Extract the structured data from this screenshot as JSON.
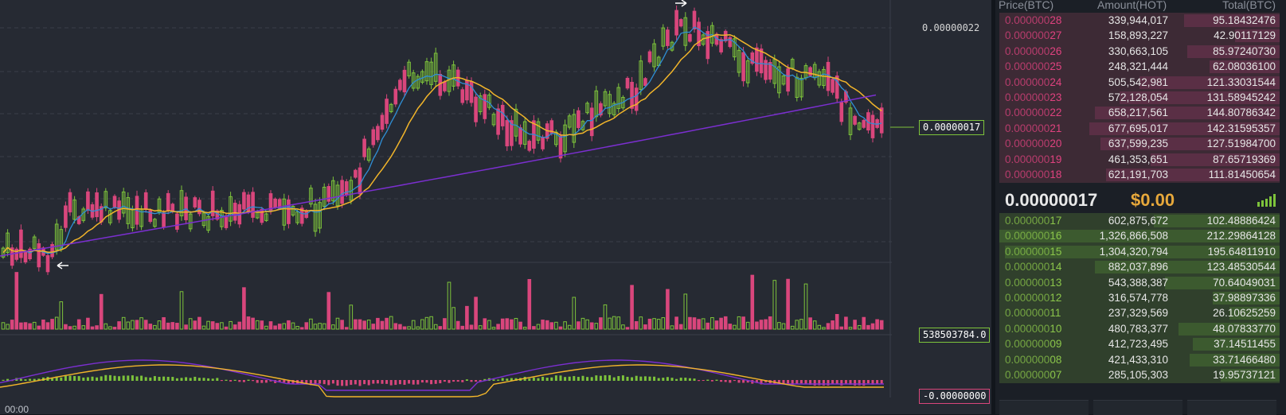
{
  "chart": {
    "high_price_label": "0.00000022",
    "last_price_label": "0.00000017",
    "volume_label": "538503784.0",
    "macd_label": "-0.00000000",
    "time_label": "00:00",
    "colors": {
      "up": "#7dc33b",
      "down": "#d9467c",
      "ma_fast": "#2f8fd6",
      "ma_mid": "#f2b52a",
      "ma_slow": "#7b2fd0",
      "background": "#262a33"
    }
  },
  "orderbook": {
    "headers": {
      "price": "Price(BTC)",
      "amount": "Amount(HOT)",
      "total": "Total(BTC)"
    },
    "asks": [
      {
        "dim": "0.000000",
        "hi": "28",
        "amount": "339,944,017",
        "total": "95.18432476",
        "depth": 0.34
      },
      {
        "dim": "0.000000",
        "hi": "27",
        "amount": "158,893,227",
        "total": "42.90117129",
        "depth": 0.16
      },
      {
        "dim": "0.000000",
        "hi": "26",
        "amount": "330,663,105",
        "total": "85.97240730",
        "depth": 0.33
      },
      {
        "dim": "0.000000",
        "hi": "25",
        "amount": "248,321,444",
        "total": "62.08036100",
        "depth": 0.25
      },
      {
        "dim": "0.000000",
        "hi": "24",
        "amount": "505,542,981",
        "total": "121.33031544",
        "depth": 0.5
      },
      {
        "dim": "0.000000",
        "hi": "23",
        "amount": "572,128,054",
        "total": "131.58945242",
        "depth": 0.57
      },
      {
        "dim": "0.000000",
        "hi": "22",
        "amount": "658,217,561",
        "total": "144.80786342",
        "depth": 0.66
      },
      {
        "dim": "0.000000",
        "hi": "21",
        "amount": "677,695,017",
        "total": "142.31595357",
        "depth": 0.68
      },
      {
        "dim": "0.000000",
        "hi": "20",
        "amount": "637,599,235",
        "total": "127.51984700",
        "depth": 0.64
      },
      {
        "dim": "0.000000",
        "hi": "19",
        "amount": "461,353,651",
        "total": "87.65719369",
        "depth": 0.46
      },
      {
        "dim": "0.000000",
        "hi": "18",
        "amount": "621,191,703",
        "total": "111.81450654",
        "depth": 0.62
      }
    ],
    "mid": {
      "price": "0.00000017",
      "usd": "$0.00"
    },
    "bids": [
      {
        "dim": "0.000000",
        "hi": "17",
        "amount": "602,875,672",
        "total": "102.48886424",
        "depth": 0.45
      },
      {
        "dim": "0.000000",
        "hi": "16",
        "amount": "1,326,866,508",
        "total": "212.29864128",
        "depth": 1.0
      },
      {
        "dim": "0.000000",
        "hi": "15",
        "amount": "1,304,320,794",
        "total": "195.64811910",
        "depth": 0.98
      },
      {
        "dim": "0.000000",
        "hi": "14",
        "amount": "882,037,896",
        "total": "123.48530544",
        "depth": 0.66
      },
      {
        "dim": "0.000000",
        "hi": "13",
        "amount": "543,388,387",
        "total": "70.64049031",
        "depth": 0.41
      },
      {
        "dim": "0.000000",
        "hi": "12",
        "amount": "316,574,778",
        "total": "37.98897336",
        "depth": 0.24
      },
      {
        "dim": "0.000000",
        "hi": "11",
        "amount": "237,329,569",
        "total": "26.10625259",
        "depth": 0.18
      },
      {
        "dim": "0.000000",
        "hi": "10",
        "amount": "480,783,377",
        "total": "48.07833770",
        "depth": 0.36
      },
      {
        "dim": "0.000000",
        "hi": "09",
        "amount": "412,723,495",
        "total": "37.14511455",
        "depth": 0.31
      },
      {
        "dim": "0.000000",
        "hi": "08",
        "amount": "421,433,310",
        "total": "33.71466480",
        "depth": 0.32
      },
      {
        "dim": "0.000000",
        "hi": "07",
        "amount": "285,105,303",
        "total": "19.95737121",
        "depth": 0.21
      }
    ],
    "icons": {
      "signal": "signal-bars-icon"
    }
  }
}
